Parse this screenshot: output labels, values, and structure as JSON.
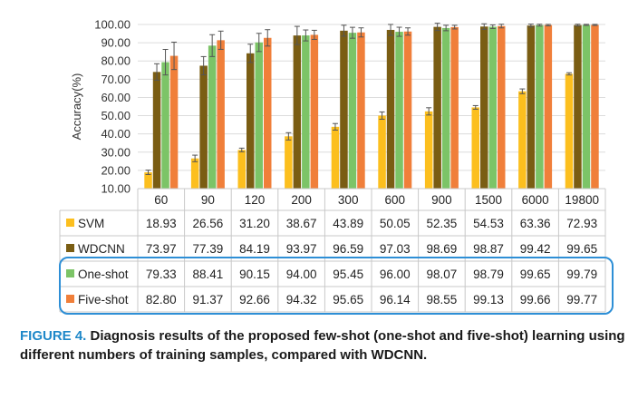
{
  "chart_data": {
    "type": "bar",
    "ylabel": "Accuracy(%)",
    "ylim": [
      10,
      100
    ],
    "yticks": [
      "10.00",
      "20.00",
      "30.00",
      "40.00",
      "50.00",
      "60.00",
      "70.00",
      "80.00",
      "90.00",
      "100.00"
    ],
    "categories": [
      "60",
      "90",
      "120",
      "200",
      "300",
      "600",
      "900",
      "1500",
      "6000",
      "19800"
    ],
    "series": [
      {
        "name": "SVM",
        "color": "#fcbf1e",
        "values": [
          18.93,
          26.56,
          31.2,
          38.67,
          43.89,
          50.05,
          52.35,
          54.53,
          63.36,
          72.93
        ],
        "errors": [
          1.2,
          1.8,
          1.0,
          2.0,
          1.8,
          2.0,
          2.0,
          1.0,
          1.3,
          0.6
        ]
      },
      {
        "name": "WDCNN",
        "color": "#7a5d13",
        "values": [
          73.97,
          77.39,
          84.19,
          93.97,
          96.59,
          97.03,
          98.69,
          98.87,
          99.42,
          99.65
        ],
        "errors": [
          4.5,
          5.0,
          5.0,
          5.0,
          3.0,
          3.0,
          2.0,
          1.5,
          0.8,
          0.5
        ]
      },
      {
        "name": "One-shot",
        "color": "#7cc467",
        "values": [
          79.33,
          88.41,
          90.15,
          94.0,
          95.45,
          96.0,
          98.07,
          98.79,
          99.65,
          99.79
        ],
        "errors": [
          7.0,
          6.0,
          5.0,
          3.0,
          3.0,
          2.5,
          1.5,
          1.0,
          0.5,
          0.3
        ]
      },
      {
        "name": "Five-shot",
        "color": "#f07f3a",
        "values": [
          82.8,
          91.37,
          92.66,
          94.32,
          95.65,
          96.14,
          98.55,
          99.13,
          99.66,
          99.77
        ],
        "errors": [
          7.5,
          5.0,
          4.5,
          2.5,
          2.5,
          2.0,
          1.0,
          1.0,
          0.4,
          0.3
        ]
      }
    ],
    "table": {
      "rows": [
        [
          "18.93",
          "26.56",
          "31.20",
          "38.67",
          "43.89",
          "50.05",
          "52.35",
          "54.53",
          "63.36",
          "72.93"
        ],
        [
          "73.97",
          "77.39",
          "84.19",
          "93.97",
          "96.59",
          "97.03",
          "98.69",
          "98.87",
          "99.42",
          "99.65"
        ],
        [
          "79.33",
          "88.41",
          "90.15",
          "94.00",
          "95.45",
          "96.00",
          "98.07",
          "98.79",
          "99.65",
          "99.79"
        ],
        [
          "82.80",
          "91.37",
          "92.66",
          "94.32",
          "95.65",
          "96.14",
          "98.55",
          "99.13",
          "99.66",
          "99.77"
        ]
      ]
    },
    "highlight_color": "#2e8fd6"
  },
  "caption": {
    "label": "FIGURE 4.",
    "text": "Diagnosis results of the proposed few-shot (one-shot and five-shot) learning using different numbers of training samples, compared with WDCNN."
  }
}
